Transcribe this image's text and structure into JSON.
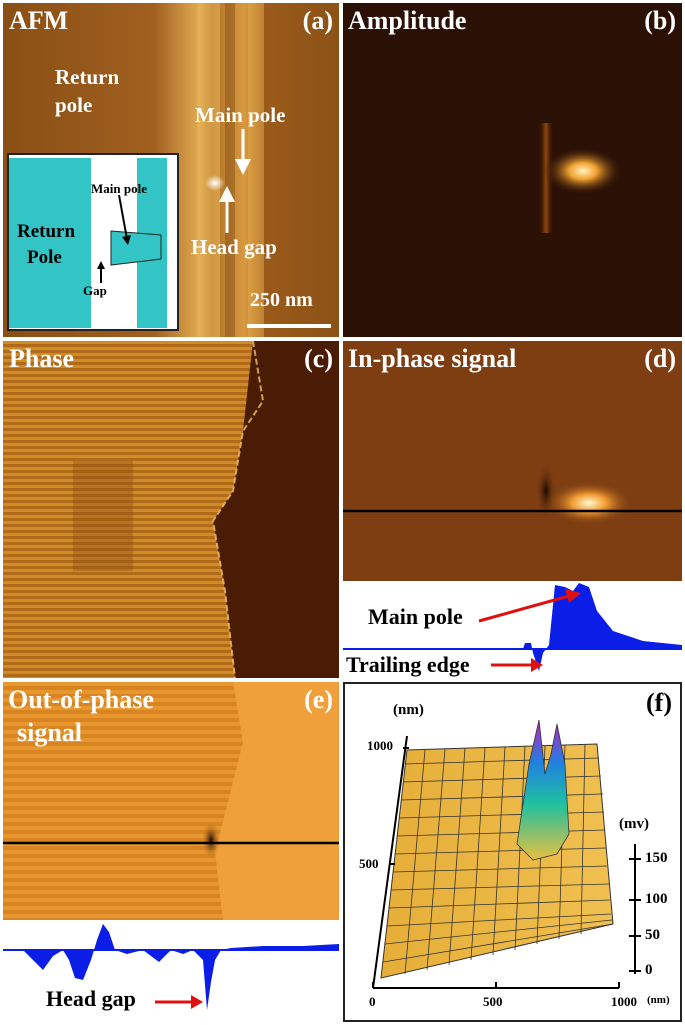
{
  "panel_a": {
    "title": "AFM",
    "letter": "(a)",
    "return_pole": [
      "Return",
      "pole"
    ],
    "main_pole": "Main pole",
    "head_gap": "Head gap",
    "scale": "250 nm",
    "inset": {
      "return_pole": [
        "Return",
        "Pole"
      ],
      "main_pole": "Main pole",
      "gap": "Gap"
    }
  },
  "panel_b": {
    "title": "Amplitude",
    "letter": "(b)"
  },
  "panel_c": {
    "title": "Phase",
    "letter": "(c)"
  },
  "panel_d": {
    "title": "In-phase signal",
    "letter": "(d)",
    "main_pole": "Main pole",
    "trailing_edge": "Trailing edge"
  },
  "panel_e": {
    "title": [
      "Out-of-phase",
      "signal"
    ],
    "letter": "(e)",
    "head_gap": "Head gap"
  },
  "panel_f": {
    "letter": "(f)",
    "y_unit": "(nm)",
    "z_unit": "(mv)",
    "x_unit": "(nm)"
  },
  "chart_data": {
    "type": "surface",
    "x_ticks": [
      "0",
      "500",
      "1000"
    ],
    "y_ticks": [
      "1000",
      "500"
    ],
    "z_ticks": [
      "150",
      "100",
      "50",
      "0"
    ]
  },
  "colors": {
    "arrow_white": "#ffffff",
    "arrow_red": "#e01010",
    "profile_blue": "#0a1ee8",
    "inset_teal": "#33c5c5",
    "surface_yellow": "#e8b840"
  }
}
